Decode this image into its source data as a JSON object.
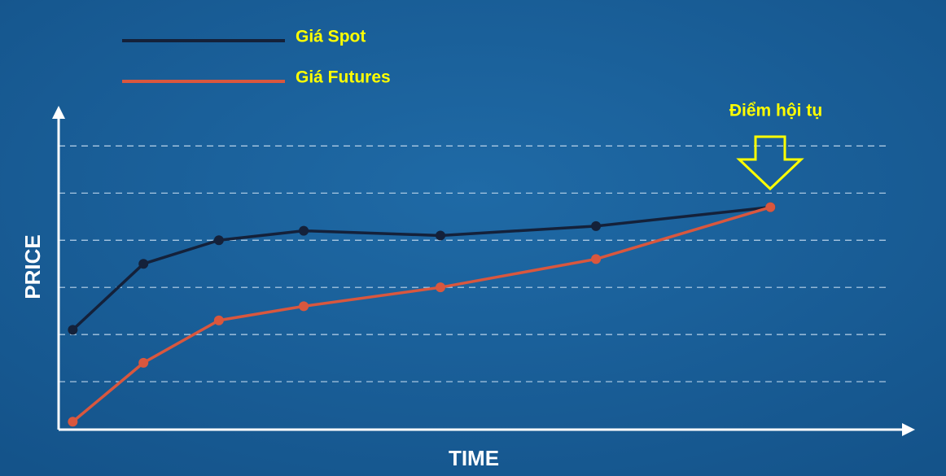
{
  "chart_data": {
    "type": "line",
    "x": [
      0.3,
      1.8,
      3.4,
      5.2,
      8.1,
      11.4,
      15.1
    ],
    "series": [
      {
        "name": "Giá Spot",
        "color": "#14213a",
        "values": [
          2.1,
          3.5,
          4.0,
          4.2,
          4.1,
          4.3,
          4.7
        ]
      },
      {
        "name": "Giá Futures",
        "color": "#d9573e",
        "values": [
          0.15,
          1.4,
          2.3,
          2.6,
          3.0,
          3.6,
          4.7
        ]
      }
    ],
    "xlim": [
      0,
      18.1
    ],
    "ylim": [
      0,
      6.8
    ],
    "yticks": [
      1,
      2,
      3,
      4,
      5,
      6
    ],
    "grid": true,
    "xlabel": "TIME",
    "ylabel": "PRICE",
    "annotation": "Điểm hội tụ"
  }
}
